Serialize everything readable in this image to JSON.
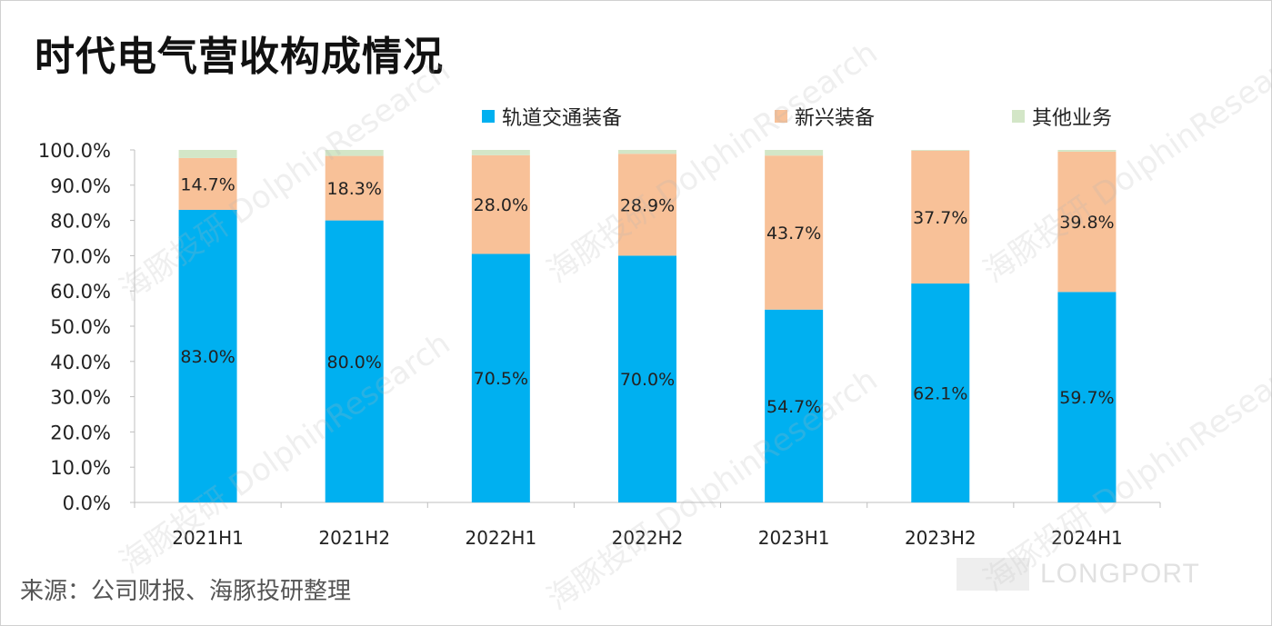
{
  "title": "时代电气营收构成情况",
  "source": "来源：公司财报、海豚投研整理",
  "watermark": {
    "text": "DolphinResearch",
    "text_cn": "海豚投研",
    "logo": "LONGPORT"
  },
  "legend": [
    {
      "label": "轨道交通装备",
      "color": "#00b0f0"
    },
    {
      "label": "新兴装备",
      "color": "#f8c198"
    },
    {
      "label": "其他业务",
      "color": "#d3e6c7"
    }
  ],
  "chart_data": {
    "type": "bar",
    "stacked": true,
    "title": "时代电气营收构成情况",
    "categories": [
      "2021H1",
      "2021H2",
      "2022H1",
      "2022H2",
      "2023H1",
      "2023H2",
      "2024H1"
    ],
    "series": [
      {
        "name": "轨道交通装备",
        "values": [
          83.0,
          80.0,
          70.5,
          70.0,
          54.7,
          62.1,
          59.7
        ],
        "labels": [
          "83.0%",
          "80.0%",
          "70.5%",
          "70.0%",
          "54.7%",
          "62.1%",
          "59.7%"
        ]
      },
      {
        "name": "新兴装备",
        "values": [
          14.7,
          18.3,
          28.0,
          28.9,
          43.7,
          37.7,
          39.8
        ],
        "labels": [
          "14.7%",
          "18.3%",
          "28.0%",
          "28.9%",
          "43.7%",
          "37.7%",
          "39.8%"
        ]
      },
      {
        "name": "其他业务",
        "values": [
          2.3,
          1.7,
          1.5,
          1.1,
          1.6,
          0.2,
          0.5
        ]
      }
    ],
    "ylim": [
      0,
      100
    ],
    "yticks": [
      "0.0%",
      "10.0%",
      "20.0%",
      "30.0%",
      "40.0%",
      "50.0%",
      "60.0%",
      "70.0%",
      "80.0%",
      "90.0%",
      "100.0%"
    ],
    "xlabel": "",
    "ylabel": "",
    "grid": false,
    "legend_position": "top"
  }
}
